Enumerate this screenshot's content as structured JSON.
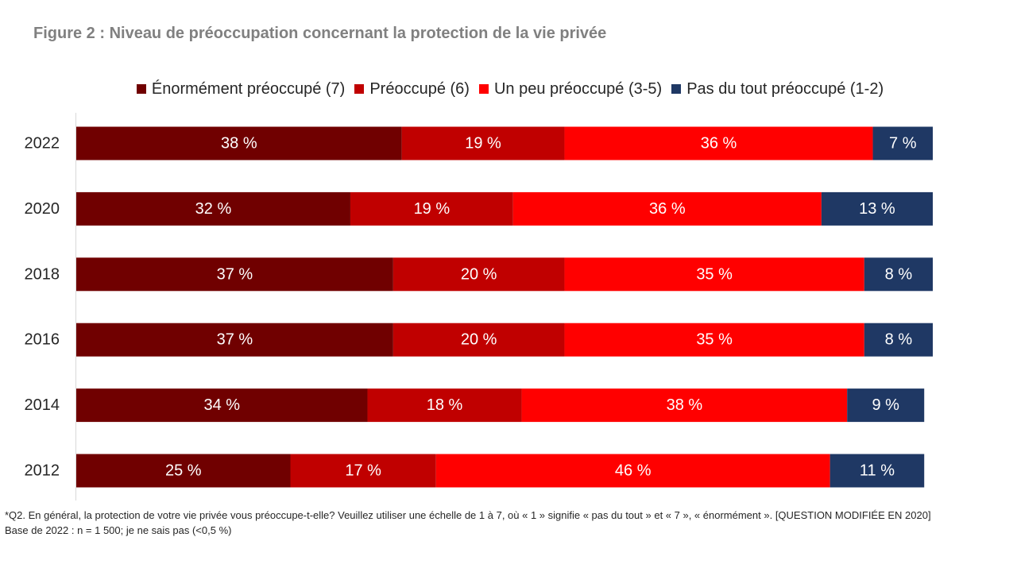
{
  "chart_data": {
    "type": "bar",
    "orientation": "horizontal",
    "stacked": true,
    "title": "Figure 2 : Niveau de préoccupation concernant la protection de la vie privée",
    "categories": [
      "2022",
      "2020",
      "2018",
      "2016",
      "2014",
      "2012"
    ],
    "series": [
      {
        "name": "Énormément préoccupé (7)",
        "color": "#700000",
        "values": [
          38,
          32,
          37,
          37,
          34,
          25
        ]
      },
      {
        "name": "Préoccupé (6)",
        "color": "#C00000",
        "values": [
          19,
          19,
          20,
          20,
          18,
          17
        ]
      },
      {
        "name": "Un peu préoccupé (3-5)",
        "color": "#FF0000",
        "values": [
          36,
          36,
          35,
          35,
          38,
          46
        ]
      },
      {
        "name": "Pas du tout préoccupé (1-2)",
        "color": "#1F3864",
        "values": [
          7,
          13,
          8,
          8,
          9,
          11
        ]
      }
    ],
    "value_suffix": " %",
    "legend_position": "top",
    "grid": false,
    "xlim": [
      0,
      100
    ]
  },
  "footnote": {
    "question": "*Q2. En général, la protection de votre vie privée vous préoccupe-t-elle? Veuillez utiliser une échelle de 1 à 7, où « 1 » signifie « pas du tout » et « 7 », « énormément ». [QUESTION MODIFIÉE EN 2020]",
    "base": "Base de 2022 : n = 1 500; je ne sais pas (<0,5 %)"
  }
}
